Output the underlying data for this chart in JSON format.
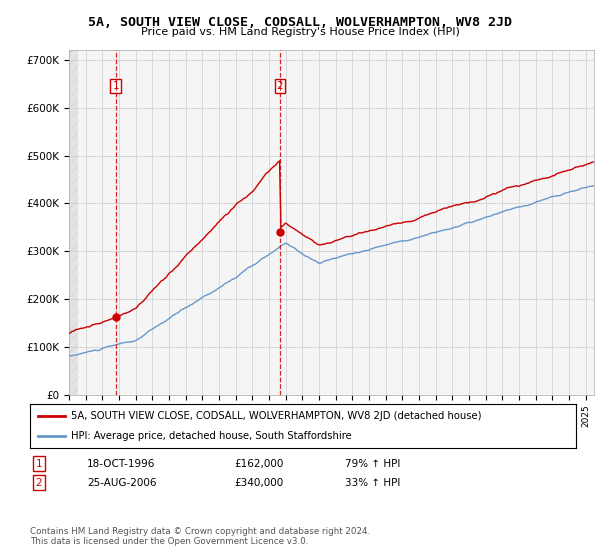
{
  "title": "5A, SOUTH VIEW CLOSE, CODSALL, WOLVERHAMPTON, WV8 2JD",
  "subtitle": "Price paid vs. HM Land Registry's House Price Index (HPI)",
  "legend_line1": "5A, SOUTH VIEW CLOSE, CODSALL, WOLVERHAMPTON, WV8 2JD (detached house)",
  "legend_line2": "HPI: Average price, detached house, South Staffordshire",
  "sale1_date": "18-OCT-1996",
  "sale1_price": 162000,
  "sale1_pct": "79% ↑ HPI",
  "sale2_date": "25-AUG-2006",
  "sale2_price": 340000,
  "sale2_pct": "33% ↑ HPI",
  "footnote": "Contains HM Land Registry data © Crown copyright and database right 2024.\nThis data is licensed under the Open Government Licence v3.0.",
  "ylim": [
    0,
    720000
  ],
  "xlim_start": 1994.0,
  "xlim_end": 2025.5,
  "sale1_x": 1996.8,
  "sale2_x": 2006.65,
  "sale1_marker_y": 162000,
  "sale2_marker_y": 340000,
  "red_color": "#cc0000",
  "blue_color": "#6699cc",
  "dashed_vline_color": "#cc0000",
  "background_plot": "#f5f5f5"
}
